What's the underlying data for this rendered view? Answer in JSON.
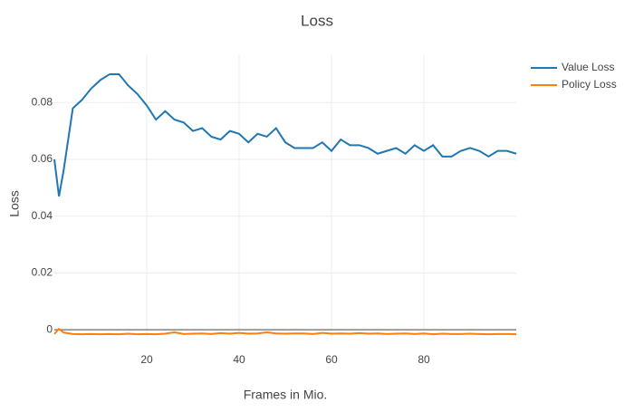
{
  "chart_data": {
    "type": "line",
    "title": "Loss",
    "x_label": "Frames in Mio.",
    "y_label": "Loss",
    "x": [
      0,
      1,
      2,
      4,
      6,
      8,
      10,
      12,
      14,
      16,
      18,
      20,
      22,
      24,
      26,
      28,
      30,
      32,
      34,
      36,
      38,
      40,
      42,
      44,
      46,
      48,
      50,
      52,
      54,
      56,
      58,
      60,
      62,
      64,
      66,
      68,
      70,
      72,
      74,
      76,
      78,
      80,
      82,
      84,
      86,
      88,
      90,
      92,
      94,
      96,
      98,
      100
    ],
    "series": [
      {
        "name": "Value Loss",
        "color": "#1f77b4",
        "values": [
          0.06,
          0.047,
          0.056,
          0.078,
          0.081,
          0.085,
          0.088,
          0.09,
          0.09,
          0.086,
          0.083,
          0.079,
          0.074,
          0.077,
          0.074,
          0.073,
          0.07,
          0.071,
          0.068,
          0.067,
          0.07,
          0.069,
          0.066,
          0.069,
          0.068,
          0.071,
          0.066,
          0.064,
          0.064,
          0.064,
          0.066,
          0.063,
          0.067,
          0.065,
          0.065,
          0.064,
          0.062,
          0.063,
          0.064,
          0.062,
          0.065,
          0.063,
          0.065,
          0.061,
          0.061,
          0.063,
          0.064,
          0.063,
          0.061,
          0.063,
          0.063,
          0.062
        ]
      },
      {
        "name": "Policy Loss",
        "color": "#ff7f0e",
        "values": [
          -0.0015,
          0.0003,
          -0.001,
          -0.0015,
          -0.0016,
          -0.0015,
          -0.0016,
          -0.0015,
          -0.0016,
          -0.0014,
          -0.0016,
          -0.0015,
          -0.0016,
          -0.0014,
          -0.0009,
          -0.0015,
          -0.0014,
          -0.0013,
          -0.0015,
          -0.0012,
          -0.0014,
          -0.0011,
          -0.0014,
          -0.0013,
          -0.0009,
          -0.0013,
          -0.0014,
          -0.0013,
          -0.0013,
          -0.0015,
          -0.0011,
          -0.0014,
          -0.0013,
          -0.0014,
          -0.0012,
          -0.0014,
          -0.0013,
          -0.0015,
          -0.0014,
          -0.0013,
          -0.0015,
          -0.0013,
          -0.0016,
          -0.0014,
          -0.0015,
          -0.0015,
          -0.0014,
          -0.0015,
          -0.0016,
          -0.0015,
          -0.0015,
          -0.0016
        ]
      }
    ],
    "xlim": [
      0,
      100
    ],
    "xticks": [
      20,
      40,
      60,
      80
    ],
    "ylim": [
      -0.0025,
      0.097
    ],
    "yticks": [
      0,
      0.02,
      0.04,
      0.06,
      0.08
    ],
    "grid": true,
    "legend": "top-right"
  }
}
